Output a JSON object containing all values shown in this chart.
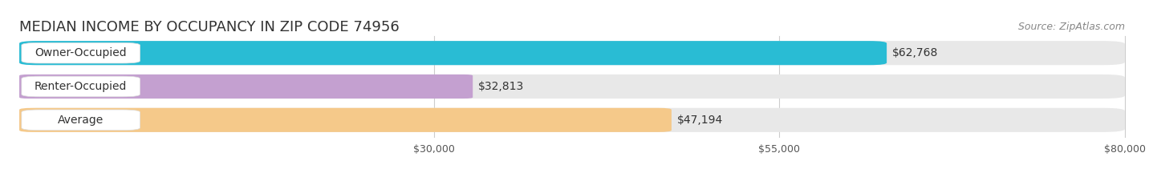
{
  "title": "MEDIAN INCOME BY OCCUPANCY IN ZIP CODE 74956",
  "source": "Source: ZipAtlas.com",
  "categories": [
    "Owner-Occupied",
    "Renter-Occupied",
    "Average"
  ],
  "values": [
    62768,
    32813,
    47194
  ],
  "bar_colors": [
    "#29bcd4",
    "#c4a0d0",
    "#f5c98a"
  ],
  "bar_labels": [
    "$62,768",
    "$32,813",
    "$47,194"
  ],
  "xmin": 0,
  "xmax": 80000,
  "xticks": [
    30000,
    55000,
    80000
  ],
  "xtick_labels": [
    "$30,000",
    "$55,000",
    "$80,000"
  ],
  "background_color": "#ffffff",
  "bar_bg_color": "#e8e8e8",
  "grid_color": "#cccccc",
  "title_color": "#333333",
  "source_color": "#888888",
  "label_color": "#333333",
  "value_color": "#333333",
  "title_fontsize": 13,
  "source_fontsize": 9,
  "label_fontsize": 10,
  "tick_fontsize": 9,
  "bar_height": 0.72,
  "bar_gap": 0.28
}
